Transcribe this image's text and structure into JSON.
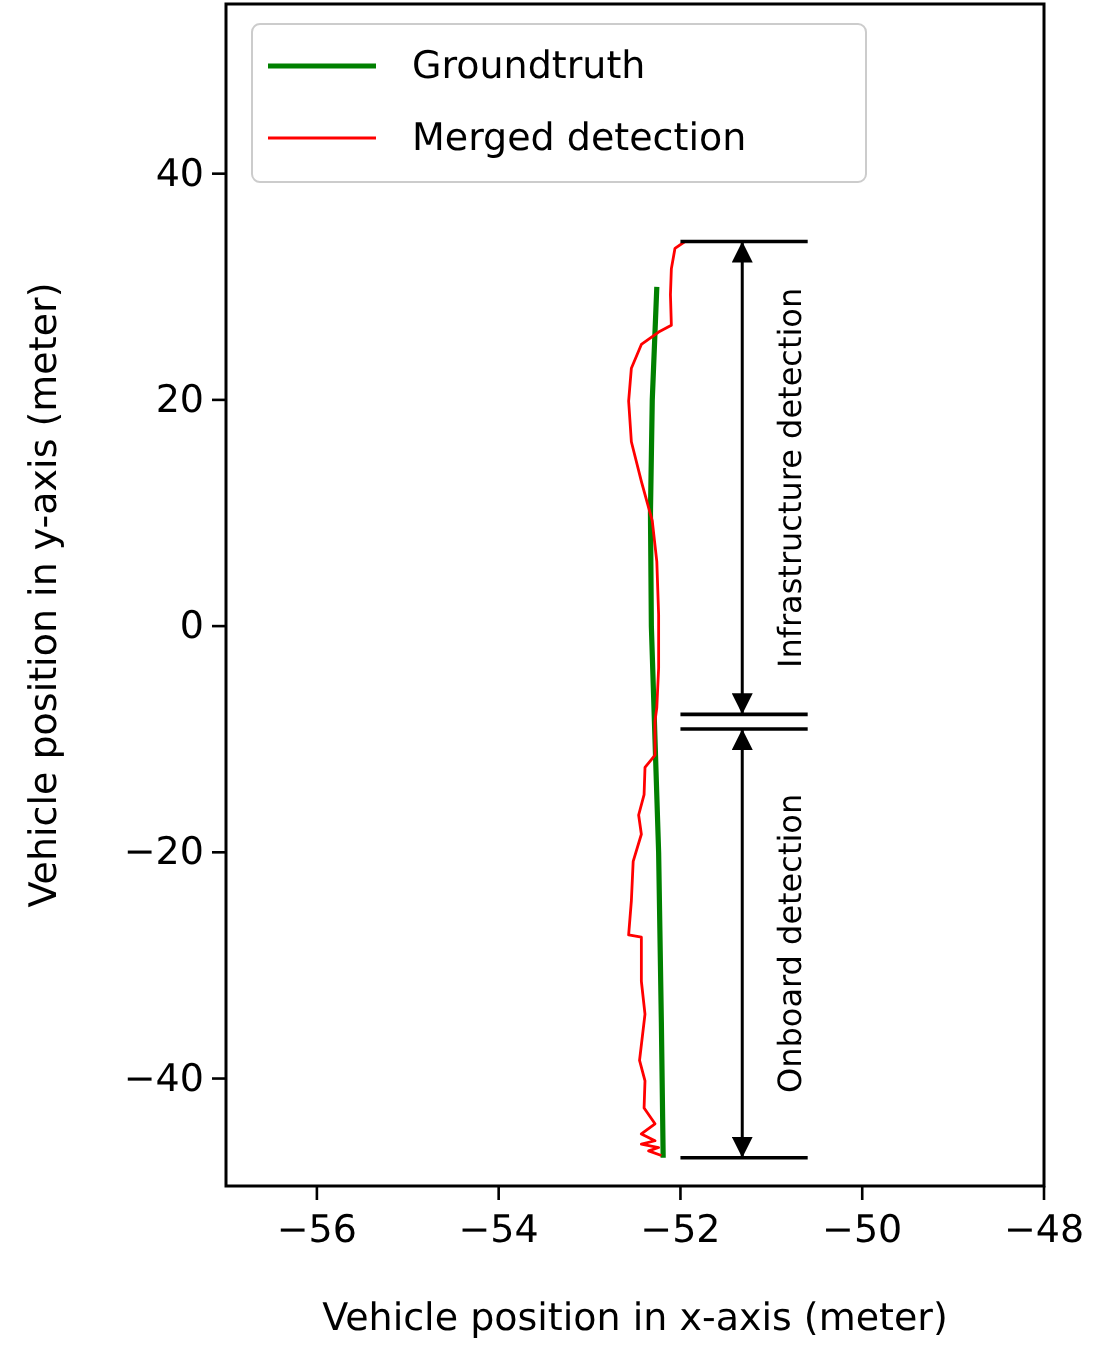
{
  "chart_data": {
    "type": "line",
    "xlabel": "Vehicle position in x-axis (meter)",
    "ylabel": "Vehicle position in y-axis (meter)",
    "xlim": [
      -57,
      -48
    ],
    "ylim": [
      -49.5,
      55
    ],
    "xticks": [
      -56,
      -54,
      -52,
      -50,
      -48
    ],
    "yticks": [
      -40,
      -20,
      0,
      20,
      40
    ],
    "grid": false,
    "legend": "top left",
    "line_style": "solid",
    "marker": "none",
    "series": [
      {
        "name": "Groundtruth",
        "color": "#008000",
        "x": [
          -52.26,
          -52.31,
          -52.33,
          -52.32,
          -52.28,
          -52.24,
          -52.21,
          -52.19
        ],
        "values": [
          30,
          20,
          10,
          0,
          -10,
          -20,
          -35,
          -47
        ]
      },
      {
        "name": "Merged detection",
        "color": "#ff0000",
        "x": [
          -51.95,
          -52.06,
          -52.1,
          -52.11,
          -52.1,
          -52.24,
          -52.43,
          -52.54,
          -52.57,
          -52.54,
          -52.43,
          -52.31,
          -52.26,
          -52.24,
          -52.24,
          -52.26,
          -52.28,
          -52.28,
          -52.39,
          -52.4,
          -52.46,
          -52.43,
          -52.52,
          -52.54,
          -52.57,
          -52.43,
          -52.43,
          -52.39,
          -52.45,
          -52.39,
          -52.4,
          -52.28,
          -52.43,
          -52.28,
          -52.43,
          -52.24,
          -52.35,
          -52.21
        ],
        "values": [
          34,
          33.4,
          31.6,
          29.3,
          26.6,
          26,
          24.9,
          22.8,
          19.9,
          16.3,
          12.8,
          9.3,
          5.7,
          1,
          -3.7,
          -7.2,
          -8.4,
          -11.4,
          -12.5,
          -14.9,
          -16.7,
          -18.4,
          -20.8,
          -24.3,
          -27.3,
          -27.5,
          -31.4,
          -34.3,
          -38.4,
          -40.2,
          -42.6,
          -44,
          -44.9,
          -45.5,
          -45.8,
          -46.1,
          -46.4,
          -46.8
        ]
      }
    ],
    "ref_lines": [
      {
        "axis": "y",
        "value": 34,
        "color": "#000000"
      },
      {
        "axis": "y",
        "value": -7.8,
        "color": "#000000"
      },
      {
        "axis": "y",
        "value": -9.1,
        "color": "#000000"
      },
      {
        "axis": "y",
        "value": -47,
        "color": "#000000"
      }
    ],
    "annotations": [
      "Infrastructure detection",
      "Onboard detection"
    ]
  }
}
